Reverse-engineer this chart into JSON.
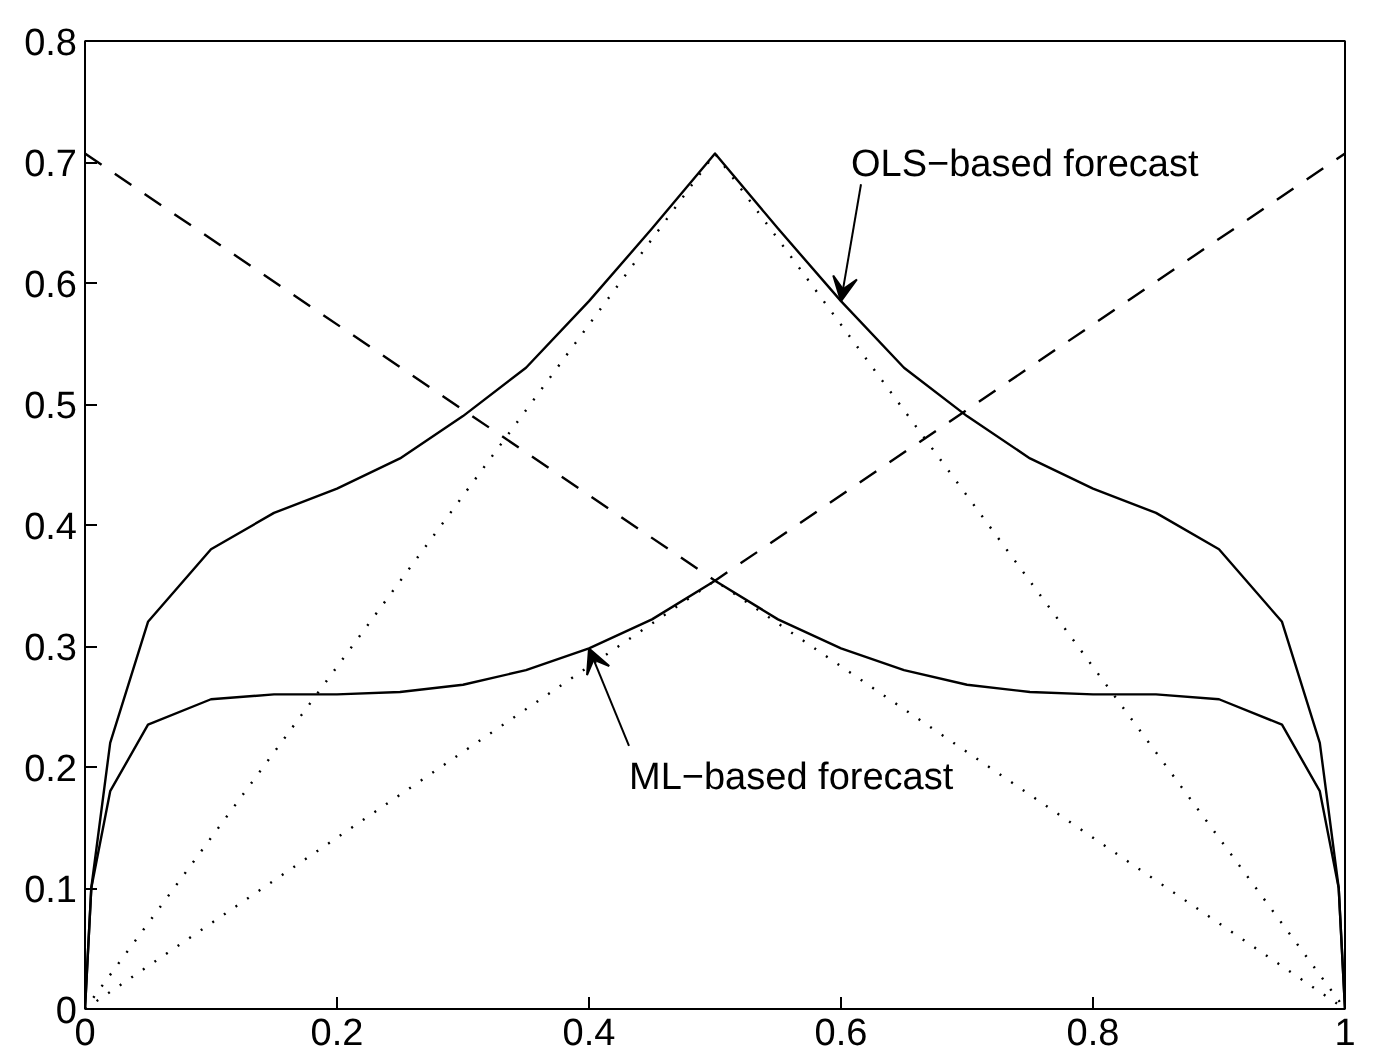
{
  "chart_data": {
    "type": "line",
    "xlim": [
      0,
      1
    ],
    "ylim": [
      0,
      0.8
    ],
    "xticks": [
      0,
      0.2,
      0.4,
      0.6,
      0.8,
      1
    ],
    "yticks": [
      0,
      0.1,
      0.2,
      0.3,
      0.4,
      0.5,
      0.6,
      0.7,
      0.8
    ],
    "grid": false,
    "marker": "none",
    "series": [
      {
        "color": "#000000",
        "line_style": "solid",
        "x": [
          0,
          0.005,
          0.02,
          0.05,
          0.1,
          0.15,
          0.2,
          0.25,
          0.3,
          0.35,
          0.4,
          0.45,
          0.5,
          0.55,
          0.6,
          0.65,
          0.7,
          0.75,
          0.8,
          0.85,
          0.9,
          0.95,
          0.98,
          0.995,
          1
        ],
        "values": [
          0,
          0.1,
          0.22,
          0.32,
          0.38,
          0.41,
          0.43,
          0.455,
          0.49,
          0.53,
          0.585,
          0.645,
          0.707,
          0.645,
          0.585,
          0.53,
          0.49,
          0.455,
          0.43,
          0.41,
          0.38,
          0.32,
          0.22,
          0.1,
          0
        ]
      },
      {
        "color": "#000000",
        "line_style": "solid",
        "x": [
          0,
          0.005,
          0.02,
          0.05,
          0.1,
          0.15,
          0.2,
          0.25,
          0.3,
          0.35,
          0.4,
          0.45,
          0.5,
          0.55,
          0.6,
          0.65,
          0.7,
          0.75,
          0.8,
          0.85,
          0.9,
          0.95,
          0.98,
          0.995,
          1
        ],
        "values": [
          0,
          0.1,
          0.18,
          0.235,
          0.256,
          0.26,
          0.26,
          0.262,
          0.268,
          0.28,
          0.298,
          0.322,
          0.354,
          0.322,
          0.298,
          0.28,
          0.268,
          0.262,
          0.26,
          0.26,
          0.256,
          0.235,
          0.18,
          0.1,
          0
        ]
      },
      {
        "color": "#000000",
        "line_style": "dashed",
        "x": [
          0,
          0.5,
          1
        ],
        "values": [
          0.707,
          0.354,
          0.707
        ]
      },
      {
        "color": "#000000",
        "line_style": "dotted",
        "x": [
          0,
          0.5,
          1
        ],
        "values": [
          0,
          0.707,
          0
        ]
      },
      {
        "color": "#000000",
        "line_style": "dotted",
        "x": [
          0,
          0.5,
          1
        ],
        "values": [
          0,
          0.354,
          0
        ]
      }
    ],
    "annotations": [
      {
        "text": "OLS−based forecast",
        "x": 0.6,
        "y": 0.585
      },
      {
        "text": "ML−based forecast",
        "x": 0.4,
        "y": 0.298
      }
    ]
  }
}
